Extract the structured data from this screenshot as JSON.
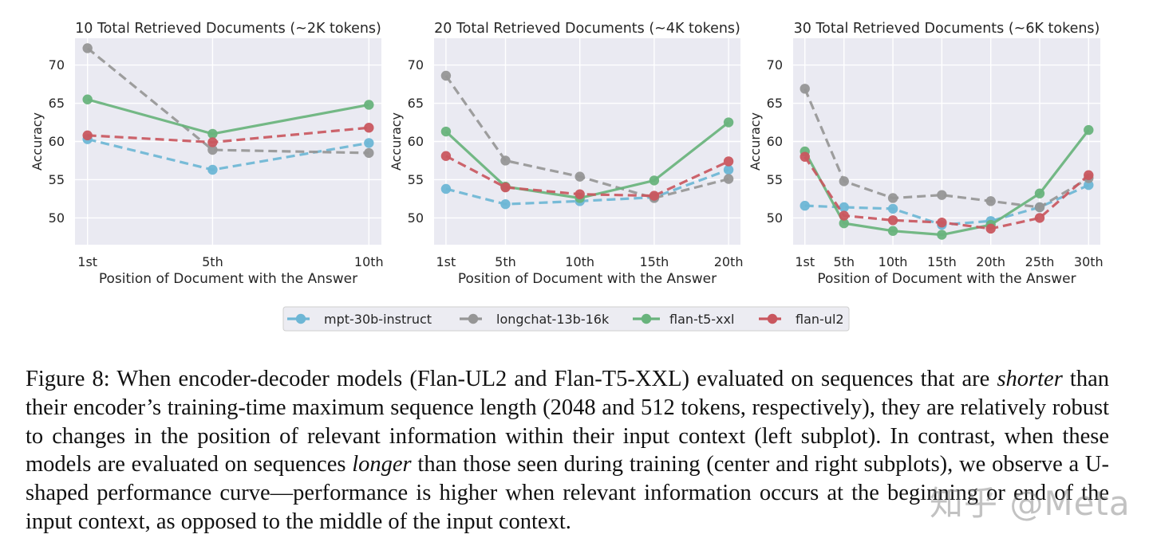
{
  "chart_data": [
    {
      "type": "line",
      "title": "10 Total Retrieved Documents (~2K tokens)",
      "xlabel": "Position of Document with the Answer",
      "ylabel": "Accuracy",
      "categories": [
        "1st",
        "5th",
        "10th"
      ],
      "x": [
        1,
        5,
        10
      ],
      "xlim": [
        0.6,
        10.4
      ],
      "ylim": [
        46.5,
        73.5
      ],
      "yticks": [
        50,
        55,
        60,
        65,
        70
      ],
      "grid": true,
      "series": [
        {
          "name": "mpt-30b-instruct",
          "values": [
            60.3,
            56.3,
            59.8
          ]
        },
        {
          "name": "longchat-13b-16k",
          "values": [
            72.2,
            58.9,
            58.5
          ]
        },
        {
          "name": "flan-t5-xxl",
          "values": [
            65.5,
            61.0,
            64.8
          ]
        },
        {
          "name": "flan-ul2",
          "values": [
            60.8,
            59.9,
            61.8
          ]
        }
      ]
    },
    {
      "type": "line",
      "title": "20 Total Retrieved Documents (~4K tokens)",
      "xlabel": "Position of Document with the Answer",
      "ylabel": "Accuracy",
      "categories": [
        "1st",
        "5th",
        "10th",
        "15th",
        "20th"
      ],
      "x": [
        1,
        5,
        10,
        15,
        20
      ],
      "xlim": [
        0.2,
        20.8
      ],
      "ylim": [
        46.5,
        73.5
      ],
      "yticks": [
        50,
        55,
        60,
        65,
        70
      ],
      "grid": true,
      "series": [
        {
          "name": "mpt-30b-instruct",
          "values": [
            53.8,
            51.8,
            52.2,
            52.7,
            56.3
          ]
        },
        {
          "name": "longchat-13b-16k",
          "values": [
            68.6,
            57.5,
            55.4,
            52.6,
            55.1
          ]
        },
        {
          "name": "flan-t5-xxl",
          "values": [
            61.3,
            54.1,
            52.6,
            54.9,
            62.5
          ]
        },
        {
          "name": "flan-ul2",
          "values": [
            58.1,
            54.0,
            53.1,
            52.9,
            57.4
          ]
        }
      ]
    },
    {
      "type": "line",
      "title": "30 Total Retrieved Documents (~6K tokens)",
      "xlabel": "Position of Document with the Answer",
      "ylabel": "Accuracy",
      "categories": [
        "1st",
        "5th",
        "10th",
        "15th",
        "20th",
        "25th",
        "30th"
      ],
      "x": [
        1,
        5,
        10,
        15,
        20,
        25,
        30
      ],
      "xlim": [
        -0.2,
        31.2
      ],
      "ylim": [
        46.5,
        73.5
      ],
      "yticks": [
        50,
        55,
        60,
        65,
        70
      ],
      "grid": true,
      "series": [
        {
          "name": "mpt-30b-instruct",
          "values": [
            51.6,
            51.4,
            51.2,
            49.1,
            49.6,
            51.4,
            54.3
          ]
        },
        {
          "name": "longchat-13b-16k",
          "values": [
            66.9,
            54.8,
            52.6,
            53.0,
            52.2,
            51.4,
            55.2
          ]
        },
        {
          "name": "flan-t5-xxl",
          "values": [
            58.7,
            49.3,
            48.3,
            47.8,
            49.1,
            53.2,
            61.5
          ]
        },
        {
          "name": "flan-ul2",
          "values": [
            58.0,
            50.3,
            49.7,
            49.4,
            48.6,
            50.0,
            55.6
          ]
        }
      ]
    }
  ],
  "legend": [
    {
      "name": "mpt-30b-instruct",
      "color": "#6db6d5",
      "dash": true
    },
    {
      "name": "longchat-13b-16k",
      "color": "#969696",
      "dash": true
    },
    {
      "name": "flan-t5-xxl",
      "color": "#68b37c",
      "dash": false
    },
    {
      "name": "flan-ul2",
      "color": "#c9575f",
      "dash": true
    }
  ],
  "caption": {
    "part1": "Figure 8: When encoder-decoder models (Flan-UL2 and Flan-T5-XXL) evaluated on sequences that are ",
    "em1": "shorter",
    "part2": " than their encoder’s training-time maximum sequence length (2048 and 512 tokens, respectively), they are relatively robust to changes in the position of relevant information within their input context (left subplot). In contrast, when these models are evaluated on sequences ",
    "em2": "longer",
    "part3": " than those seen during training (center and right subplots), we observe a U-shaped performance curve—performance is higher when relevant information occurs at the beginning or end of the input context, as opposed to the middle of the input context."
  },
  "watermark": "知乎 @Meta"
}
